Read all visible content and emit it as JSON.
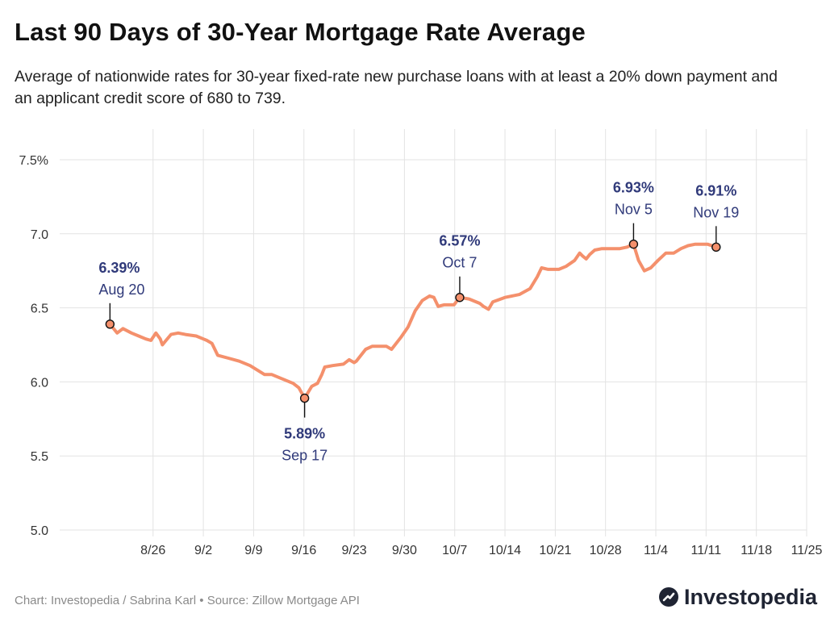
{
  "header": {
    "title": "Last 90 Days of 30-Year Mortgage Rate Average",
    "subtitle": "Average of nationwide rates for 30-year fixed-rate new purchase loans with at least a 20% down payment and an applicant credit score of 680 to 739."
  },
  "footer": {
    "credit": "Chart: Investopedia / Sabrina Karl • Source: Zillow Mortgage API",
    "brand": "Investopedia"
  },
  "colors": {
    "line": "#f4906c",
    "annotation": "#303a7a",
    "grid": "#e3e3e3",
    "tick": "#333333"
  },
  "chart_data": {
    "type": "line",
    "title": "Last 90 Days of 30-Year Mortgage Rate Average",
    "xlabel": "",
    "ylabel": "",
    "x_unit": "day index (0 = Aug 20)",
    "xlim": [
      -7,
      97
    ],
    "ylim": [
      5.0,
      7.5
    ],
    "grid": true,
    "y_ticks": [
      5.0,
      5.5,
      6.0,
      6.5,
      7.0,
      7.5
    ],
    "y_tick_labels": [
      "5.0",
      "5.5",
      "6.0",
      "6.5",
      "7.0",
      "7.5%"
    ],
    "x_ticks": [
      {
        "x": 6,
        "label": "8/26"
      },
      {
        "x": 13,
        "label": "9/2"
      },
      {
        "x": 20,
        "label": "9/9"
      },
      {
        "x": 27,
        "label": "9/16"
      },
      {
        "x": 34,
        "label": "9/23"
      },
      {
        "x": 41,
        "label": "9/30"
      },
      {
        "x": 48,
        "label": "10/7"
      },
      {
        "x": 55,
        "label": "10/14"
      },
      {
        "x": 62,
        "label": "10/21"
      },
      {
        "x": 69,
        "label": "10/28"
      },
      {
        "x": 76,
        "label": "11/4"
      },
      {
        "x": 83,
        "label": "11/11"
      },
      {
        "x": 90,
        "label": "11/18"
      },
      {
        "x": 97,
        "label": "11/25"
      }
    ],
    "series": [
      {
        "name": "30-Year Mortgage Rate Average",
        "points": [
          [
            0,
            6.39
          ],
          [
            1,
            6.33
          ],
          [
            1.8,
            6.36
          ],
          [
            3,
            6.33
          ],
          [
            4,
            6.31
          ],
          [
            5,
            6.29
          ],
          [
            5.7,
            6.28
          ],
          [
            6.4,
            6.33
          ],
          [
            7,
            6.29
          ],
          [
            7.3,
            6.25
          ],
          [
            7.8,
            6.28
          ],
          [
            8.5,
            6.32
          ],
          [
            9.5,
            6.33
          ],
          [
            10.5,
            6.32
          ],
          [
            12,
            6.31
          ],
          [
            13.5,
            6.28
          ],
          [
            14.2,
            6.26
          ],
          [
            15,
            6.18
          ],
          [
            16.5,
            6.16
          ],
          [
            18,
            6.14
          ],
          [
            19.5,
            6.11
          ],
          [
            20.5,
            6.08
          ],
          [
            21.5,
            6.05
          ],
          [
            22.5,
            6.05
          ],
          [
            24,
            6.02
          ],
          [
            25.5,
            5.99
          ],
          [
            26.3,
            5.96
          ],
          [
            27.1,
            5.89
          ],
          [
            28.1,
            5.97
          ],
          [
            28.9,
            5.99
          ],
          [
            29.5,
            6.05
          ],
          [
            29.9,
            6.1
          ],
          [
            31,
            6.11
          ],
          [
            32.5,
            6.12
          ],
          [
            33.3,
            6.15
          ],
          [
            34,
            6.13
          ],
          [
            34.3,
            6.14
          ],
          [
            35.6,
            6.22
          ],
          [
            36.5,
            6.24
          ],
          [
            38.5,
            6.24
          ],
          [
            39.2,
            6.22
          ],
          [
            40.5,
            6.3
          ],
          [
            41.5,
            6.37
          ],
          [
            42.5,
            6.48
          ],
          [
            43.5,
            6.55
          ],
          [
            44.5,
            6.58
          ],
          [
            45.1,
            6.57
          ],
          [
            45.7,
            6.51
          ],
          [
            46.5,
            6.52
          ],
          [
            47.9,
            6.52
          ],
          [
            48.7,
            6.57
          ],
          [
            50,
            6.56
          ],
          [
            51.5,
            6.53
          ],
          [
            52,
            6.51
          ],
          [
            52.7,
            6.49
          ],
          [
            53.3,
            6.54
          ],
          [
            55,
            6.57
          ],
          [
            57,
            6.59
          ],
          [
            58.5,
            6.63
          ],
          [
            59.5,
            6.71
          ],
          [
            60.1,
            6.77
          ],
          [
            61,
            6.76
          ],
          [
            62.5,
            6.76
          ],
          [
            63.5,
            6.78
          ],
          [
            64.7,
            6.82
          ],
          [
            65.4,
            6.87
          ],
          [
            65.8,
            6.85
          ],
          [
            66.3,
            6.83
          ],
          [
            66.8,
            6.86
          ],
          [
            67.5,
            6.89
          ],
          [
            68.5,
            6.9
          ],
          [
            70,
            6.9
          ],
          [
            71,
            6.9
          ],
          [
            72,
            6.91
          ],
          [
            72.9,
            6.93
          ],
          [
            73.6,
            6.82
          ],
          [
            74.4,
            6.75
          ],
          [
            75.3,
            6.77
          ],
          [
            76.3,
            6.82
          ],
          [
            77.4,
            6.87
          ],
          [
            78.5,
            6.87
          ],
          [
            79.5,
            6.9
          ],
          [
            80.5,
            6.92
          ],
          [
            81.5,
            6.93
          ],
          [
            83.2,
            6.93
          ],
          [
            84.4,
            6.91
          ]
        ]
      }
    ],
    "annotations": [
      {
        "x": 0,
        "y": 6.39,
        "value": "6.39%",
        "date": "Aug 20",
        "position": "above"
      },
      {
        "x": 27.1,
        "y": 5.89,
        "value": "5.89%",
        "date": "Sep 17",
        "position": "below"
      },
      {
        "x": 48.7,
        "y": 6.57,
        "value": "6.57%",
        "date": "Oct 7",
        "position": "above"
      },
      {
        "x": 72.9,
        "y": 6.93,
        "value": "6.93%",
        "date": "Nov 5",
        "position": "above"
      },
      {
        "x": 84.4,
        "y": 6.91,
        "value": "6.91%",
        "date": "Nov 19",
        "position": "above"
      }
    ]
  }
}
